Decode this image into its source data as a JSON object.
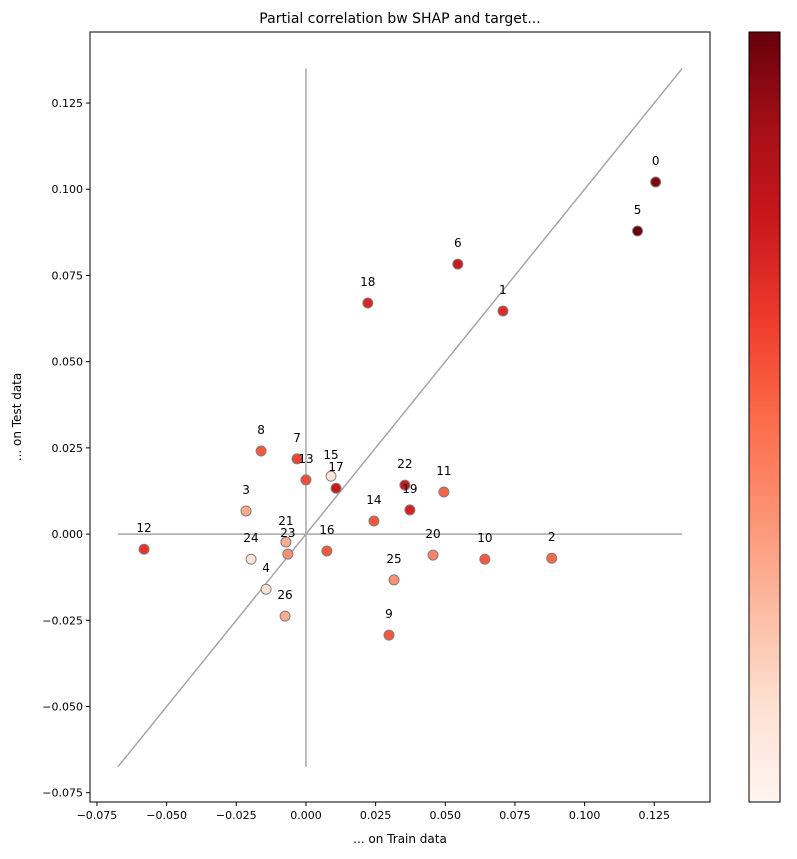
{
  "chart_data": {
    "type": "scatter",
    "title": "Partial correlation bw SHAP and target...",
    "xlabel": "... on Train data",
    "ylabel": "... on Test data",
    "xlim": [
      -0.0775,
      0.145
    ],
    "ylim": [
      -0.0777,
      0.1456
    ],
    "xticks": [
      -0.075,
      -0.05,
      -0.025,
      0.0,
      0.025,
      0.05,
      0.075,
      0.1,
      0.125
    ],
    "xtick_labels": [
      "−0.075",
      "−0.050",
      "−0.025",
      "0.000",
      "0.025",
      "0.050",
      "0.075",
      "0.100",
      "0.125"
    ],
    "yticks": [
      -0.075,
      -0.05,
      -0.025,
      0.0,
      0.025,
      0.05,
      0.075,
      0.1,
      0.125
    ],
    "ytick_labels": [
      "−0.075",
      "−0.050",
      "−0.025",
      "0.000",
      "0.025",
      "0.050",
      "0.075",
      "0.100",
      "0.125"
    ],
    "grid": false,
    "colormap": "Reds",
    "colorbar": true,
    "reference_lines": {
      "diagonal": [
        -0.0675,
        0.135
      ],
      "horizontal_y0": [
        -0.0675,
        0.135
      ],
      "vertical_x0": [
        -0.0675,
        0.135
      ],
      "color": "#a6a6a6"
    },
    "marker_edge_color": "#7f7f7f",
    "points": [
      {
        "label": "0",
        "x": 0.1255,
        "y": 0.1021,
        "c": 0.95
      },
      {
        "label": "1",
        "x": 0.0707,
        "y": 0.0647,
        "c": 0.68
      },
      {
        "label": "2",
        "x": 0.0882,
        "y": -0.007,
        "c": 0.5
      },
      {
        "label": "3",
        "x": -0.0215,
        "y": 0.0067,
        "c": 0.3
      },
      {
        "label": "4",
        "x": -0.0143,
        "y": -0.016,
        "c": 0.12
      },
      {
        "label": "5",
        "x": 0.119,
        "y": 0.0879,
        "c": 1.0
      },
      {
        "label": "6",
        "x": 0.0545,
        "y": 0.0783,
        "c": 0.75
      },
      {
        "label": "7",
        "x": -0.0032,
        "y": 0.0218,
        "c": 0.6
      },
      {
        "label": "8",
        "x": -0.0161,
        "y": 0.0241,
        "c": 0.55
      },
      {
        "label": "9",
        "x": 0.0298,
        "y": -0.0293,
        "c": 0.55
      },
      {
        "label": "10",
        "x": 0.0642,
        "y": -0.0073,
        "c": 0.55
      },
      {
        "label": "11",
        "x": 0.0495,
        "y": 0.0122,
        "c": 0.52
      },
      {
        "label": "12",
        "x": -0.0581,
        "y": -0.0044,
        "c": 0.65
      },
      {
        "label": "13",
        "x": 0.0,
        "y": 0.0157,
        "c": 0.58
      },
      {
        "label": "14",
        "x": 0.0244,
        "y": 0.0038,
        "c": 0.55
      },
      {
        "label": "15",
        "x": 0.009,
        "y": 0.0168,
        "c": 0.1
      },
      {
        "label": "16",
        "x": 0.0075,
        "y": -0.0049,
        "c": 0.55
      },
      {
        "label": "17",
        "x": 0.0108,
        "y": 0.0133,
        "c": 0.75
      },
      {
        "label": "18",
        "x": 0.0222,
        "y": 0.067,
        "c": 0.7
      },
      {
        "label": "19",
        "x": 0.0373,
        "y": 0.007,
        "c": 0.72
      },
      {
        "label": "20",
        "x": 0.0456,
        "y": -0.0061,
        "c": 0.42
      },
      {
        "label": "21",
        "x": -0.0072,
        "y": -0.0023,
        "c": 0.3
      },
      {
        "label": "22",
        "x": 0.0355,
        "y": 0.0142,
        "c": 0.75
      },
      {
        "label": "23",
        "x": -0.0065,
        "y": -0.0058,
        "c": 0.38
      },
      {
        "label": "24",
        "x": -0.0197,
        "y": -0.0073,
        "c": 0.12
      },
      {
        "label": "25",
        "x": 0.0316,
        "y": -0.0133,
        "c": 0.38
      },
      {
        "label": "26",
        "x": -0.0075,
        "y": -0.0238,
        "c": 0.3
      }
    ]
  }
}
